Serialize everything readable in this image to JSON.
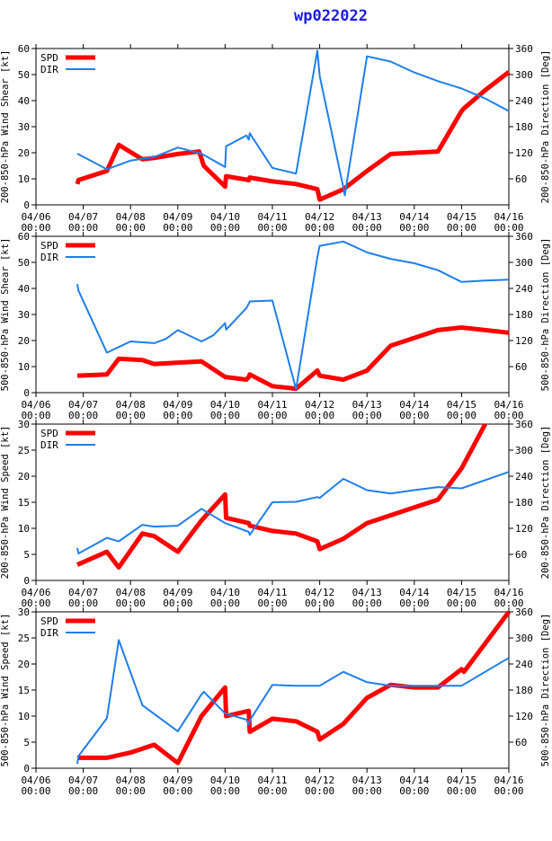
{
  "title": "wp022022",
  "colors": {
    "spd": "#ff0000",
    "dir": "#1f7fe8",
    "axis": "#000000"
  },
  "x_ticks": [
    "04/06\n00:00",
    "04/07\n00:00",
    "04/08\n00:00",
    "04/09\n00:00",
    "04/10\n00:00",
    "04/11\n00:00",
    "04/12\n00:00",
    "04/13\n00:00",
    "04/14\n00:00",
    "04/15\n00:00",
    "04/16\n00:00"
  ],
  "chart_data": [
    {
      "type": "line",
      "ylabel": "200-850-hPa Wind Shear [kt]",
      "y2label": "200-850-hPa Direction [Deg]",
      "ylim": [
        0,
        60
      ],
      "y2lim": [
        0,
        360
      ],
      "yticks": [
        0,
        10,
        20,
        30,
        40,
        50,
        60
      ],
      "y2ticks": [
        60,
        120,
        180,
        240,
        300,
        360
      ],
      "xlim": [
        0,
        10
      ],
      "legend": [
        "SPD",
        "DIR"
      ],
      "series": [
        {
          "name": "SPD",
          "x": [
            0.875,
            0.9,
            1.5,
            1.75,
            2.25,
            2.5,
            3.0,
            3.45,
            3.55,
            4.0,
            4.02,
            4.5,
            4.52,
            5.0,
            5.5,
            5.95,
            6.0,
            6.5,
            7.0,
            7.5,
            8.0,
            8.5,
            9.0,
            9.05,
            9.5,
            10.0
          ],
          "values": [
            8,
            9.5,
            13,
            23,
            17.5,
            18,
            19.5,
            20.5,
            15,
            7,
            11,
            9.5,
            10.5,
            9,
            8,
            6,
            2,
            6,
            13,
            19.5,
            20,
            20.5,
            36,
            37,
            44,
            51
          ]
        },
        {
          "name": "DIR",
          "x": [
            0.875,
            1.5,
            2.0,
            2.5,
            3.0,
            3.5,
            4.0,
            4.02,
            4.45,
            4.5,
            4.52,
            5.0,
            5.5,
            5.95,
            6.0,
            6.5,
            6.53,
            7.0,
            7.5,
            8.0,
            8.5,
            9.0,
            9.5,
            10.0
          ],
          "values": [
            118,
            82,
            102,
            110,
            132,
            118,
            87,
            135,
            160,
            150,
            165,
            85,
            72,
            355,
            297,
            40,
            22,
            342,
            330,
            305,
            285,
            268,
            245,
            216
          ]
        }
      ]
    },
    {
      "type": "line",
      "ylabel": "500-850-hPa Wind Shear [kt]",
      "y2label": "500-850-hPa Direction [Deg]",
      "ylim": [
        0,
        60
      ],
      "y2lim": [
        0,
        360
      ],
      "yticks": [
        0,
        10,
        20,
        30,
        40,
        50,
        60
      ],
      "y2ticks": [
        60,
        120,
        180,
        240,
        300,
        360
      ],
      "xlim": [
        0,
        10
      ],
      "legend": [
        "SPD",
        "DIR"
      ],
      "series": [
        {
          "name": "SPD",
          "x": [
            0.875,
            1.5,
            1.75,
            2.25,
            2.5,
            3.0,
            3.5,
            4.0,
            4.45,
            4.5,
            4.52,
            5.0,
            5.5,
            5.95,
            6.0,
            6.5,
            7.0,
            7.5,
            8.0,
            8.5,
            9.0,
            9.5,
            10.0
          ],
          "values": [
            6.5,
            7,
            13,
            12.5,
            11,
            11.5,
            12,
            6,
            5,
            6,
            7,
            2.5,
            1.5,
            8.5,
            6.5,
            5,
            8.5,
            18,
            21,
            24,
            25,
            24,
            23
          ]
        },
        {
          "name": "DIR",
          "x": [
            0.875,
            0.9,
            1.5,
            2.0,
            2.5,
            2.75,
            3.0,
            3.5,
            3.75,
            4.0,
            4.02,
            4.45,
            4.5,
            4.52,
            5.0,
            5.5,
            5.95,
            6.0,
            6.5,
            7.0,
            7.5,
            8.0,
            8.5,
            9.0,
            9.5,
            10.0
          ],
          "values": [
            250,
            235,
            92,
            118,
            114,
            124,
            144,
            118,
            132,
            160,
            145,
            195,
            205,
            210,
            212,
            8,
            312,
            338,
            348,
            323,
            308,
            298,
            282,
            255,
            258,
            260
          ]
        }
      ]
    },
    {
      "type": "line",
      "ylabel": "200-850-hPa Wind Speed [kt]",
      "y2label": "200-850-hPa Direction [Deg]",
      "ylim": [
        0,
        30
      ],
      "y2lim": [
        0,
        360
      ],
      "yticks": [
        0,
        5,
        10,
        15,
        20,
        25,
        30
      ],
      "y2ticks": [
        60,
        120,
        180,
        240,
        300,
        360
      ],
      "xlim": [
        0,
        10
      ],
      "legend": [
        "SPD",
        "DIR"
      ],
      "series": [
        {
          "name": "SPD",
          "x": [
            0.875,
            1.5,
            1.75,
            2.25,
            2.5,
            3.0,
            3.5,
            4.0,
            4.02,
            4.5,
            4.52,
            5.0,
            5.5,
            5.95,
            6.0,
            6.5,
            7.0,
            7.5,
            8.0,
            8.5,
            9.0,
            9.5
          ],
          "values": [
            3,
            5.5,
            2.5,
            9,
            8.5,
            5.5,
            11.5,
            16.5,
            12,
            11,
            10.5,
            9.5,
            9,
            7.5,
            6,
            8,
            11,
            12.5,
            14,
            15.5,
            21.5,
            30
          ]
        },
        {
          "name": "DIR",
          "x": [
            0.875,
            0.9,
            1.5,
            1.75,
            2.25,
            2.5,
            3.0,
            3.5,
            4.0,
            4.5,
            4.52,
            5.0,
            5.5,
            5.95,
            6.0,
            6.5,
            7.0,
            7.5,
            8.0,
            8.5,
            9.0,
            10.0
          ],
          "values": [
            75,
            62,
            98,
            90,
            128,
            124,
            126,
            165,
            132,
            112,
            105,
            180,
            181,
            192,
            190,
            234,
            208,
            200,
            208,
            215,
            212,
            250
          ]
        }
      ]
    },
    {
      "type": "line",
      "ylabel": "500-850-hPa Wind Speed [kt]",
      "y2label": "500-850-hPa Direction [Deg]",
      "ylim": [
        0,
        30
      ],
      "y2lim": [
        0,
        360
      ],
      "yticks": [
        0,
        5,
        10,
        15,
        20,
        25,
        30
      ],
      "y2ticks": [
        60,
        120,
        180,
        240,
        300,
        360
      ],
      "xlim": [
        0,
        10
      ],
      "legend": [
        "SPD",
        "DIR"
      ],
      "series": [
        {
          "name": "SPD",
          "x": [
            0.875,
            1.5,
            2.0,
            2.5,
            3.0,
            3.5,
            4.0,
            4.02,
            4.5,
            4.52,
            5.0,
            5.5,
            5.95,
            6.0,
            6.5,
            7.0,
            7.5,
            8.0,
            8.5,
            9.0,
            9.05,
            10.0
          ],
          "values": [
            2,
            2,
            3,
            4.5,
            1,
            10,
            15.5,
            10,
            11,
            7,
            9.5,
            9,
            7,
            5.5,
            8.5,
            13.5,
            16,
            15.5,
            15.5,
            19,
            18.5,
            30
          ]
        },
        {
          "name": "DIR",
          "x": [
            0.875,
            0.9,
            1.5,
            1.75,
            2.25,
            2.5,
            3.0,
            3.5,
            3.55,
            4.0,
            4.45,
            4.5,
            4.52,
            5.0,
            5.5,
            6.0,
            6.5,
            7.0,
            7.5,
            8.0,
            8.5,
            9.0,
            10.0
          ],
          "values": [
            10,
            28,
            115,
            295,
            145,
            125,
            85,
            170,
            176,
            126,
            112,
            100,
            110,
            192,
            190,
            190,
            222,
            198,
            190,
            190,
            190,
            190,
            254
          ]
        }
      ]
    }
  ]
}
